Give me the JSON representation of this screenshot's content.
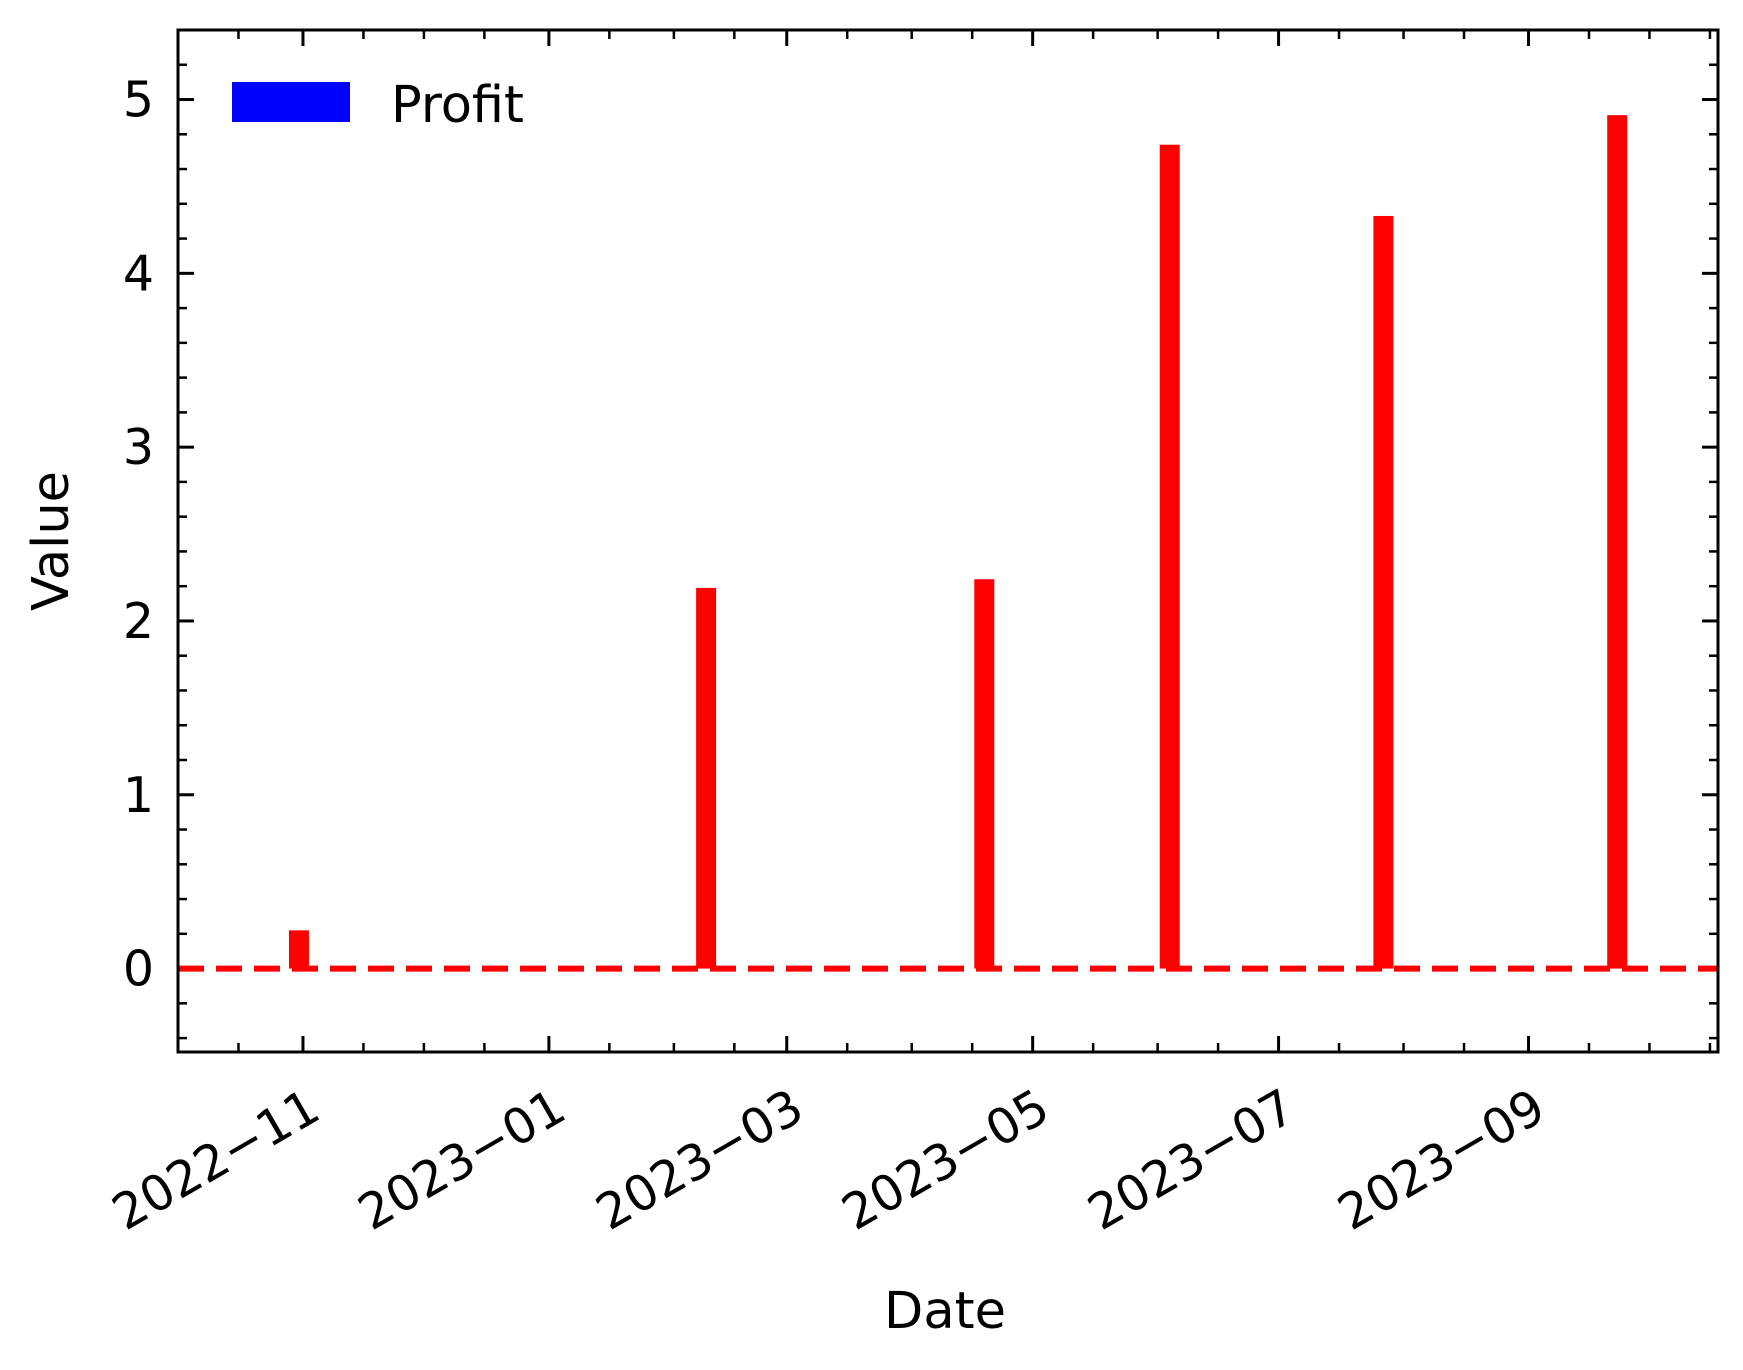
{
  "chart_data": {
    "type": "bar",
    "x_type": "date",
    "x": [
      "2022-10-31",
      "2023-02-09",
      "2023-04-19",
      "2023-06-04",
      "2023-07-27",
      "2023-09-23"
    ],
    "series": [
      {
        "name": "Profit",
        "values": [
          0.22,
          2.19,
          2.24,
          4.74,
          4.33,
          4.91
        ]
      }
    ],
    "bar_color": "#ff0000",
    "legend_patch_color": "#0000ff",
    "xlabel": "Date",
    "ylabel": "Value",
    "xlim": [
      "2022-10-01",
      "2023-10-18"
    ],
    "ylim": [
      -0.48,
      5.4
    ],
    "x_ticks": [
      "2022-11-01",
      "2023-01-01",
      "2023-03-01",
      "2023-05-01",
      "2023-07-01",
      "2023-09-01"
    ],
    "x_tick_labels": [
      "2022−11",
      "2023−01",
      "2023−03",
      "2023−05",
      "2023−07",
      "2023−09"
    ],
    "y_ticks": [
      0,
      1,
      2,
      3,
      4,
      5
    ],
    "y_tick_labels": [
      "0",
      "1",
      "2",
      "3",
      "4",
      "5"
    ],
    "reference_line": {
      "y": 0,
      "style": "dashed",
      "color": "#ff0000"
    },
    "grid": false,
    "legend_position": "top-left"
  }
}
